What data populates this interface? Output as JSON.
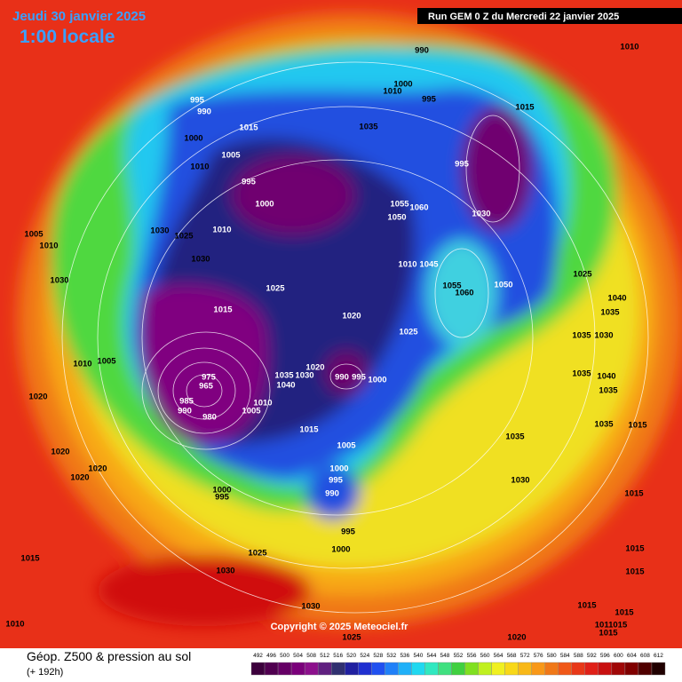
{
  "header": {
    "date": "Jeudi 30 janvier 2025",
    "time": "1:00 locale",
    "run": "Run GEM 0 Z du Mercredi 22 janvier 2025"
  },
  "map": {
    "pressure_labels": [
      995,
      990,
      990,
      1010,
      1000,
      1010,
      995,
      1015,
      1035,
      1015,
      1000,
      1005,
      1010,
      995,
      995,
      1000,
      1055,
      1060,
      1050,
      1030,
      1005,
      1030,
      1025,
      1010,
      1010,
      1030,
      1010,
      1045,
      1055,
      1060,
      1050,
      1025,
      1025,
      1030,
      1015,
      1020,
      1040,
      1035,
      1025,
      1035,
      1030,
      1005,
      1010,
      1035,
      1040,
      1035,
      1020,
      1035,
      1030,
      1040,
      990,
      995,
      1000,
      975,
      965,
      985,
      990,
      980,
      1005,
      1010,
      1020,
      1015,
      1035,
      1015,
      1005,
      1000,
      995,
      990,
      1035,
      1030,
      1020,
      1020,
      1020,
      1000,
      995,
      1015,
      995,
      1000,
      1025,
      1015,
      1015,
      1030,
      1015,
      1015,
      1030,
      1015,
      1011015,
      1015,
      1010,
      1025,
      1020
    ]
  },
  "footer": {
    "copyright": "Copyright © 2025 Meteociel.fr",
    "title": "Géop. Z500 & pression au sol",
    "lead": "(+ 192h)"
  },
  "legend": {
    "values": [
      492,
      496,
      500,
      504,
      508,
      512,
      516,
      520,
      524,
      528,
      532,
      536,
      540,
      544,
      548,
      552,
      556,
      560,
      564,
      568,
      572,
      576,
      580,
      584,
      588,
      592,
      596,
      600,
      604,
      608,
      612
    ],
    "colors": [
      "#3c003c",
      "#500050",
      "#660066",
      "#7a007a",
      "#8c108c",
      "#602080",
      "#303070",
      "#2020a0",
      "#2030d0",
      "#2050f0",
      "#2080f8",
      "#20b0f8",
      "#20d8f0",
      "#30e8c0",
      "#40e080",
      "#40d040",
      "#80e020",
      "#c0f020",
      "#f0f020",
      "#f8d818",
      "#f8b818",
      "#f89818",
      "#f07818",
      "#f05818",
      "#e83818",
      "#e02018",
      "#c81010",
      "#a00808",
      "#800000",
      "#500000",
      "#200000"
    ]
  }
}
